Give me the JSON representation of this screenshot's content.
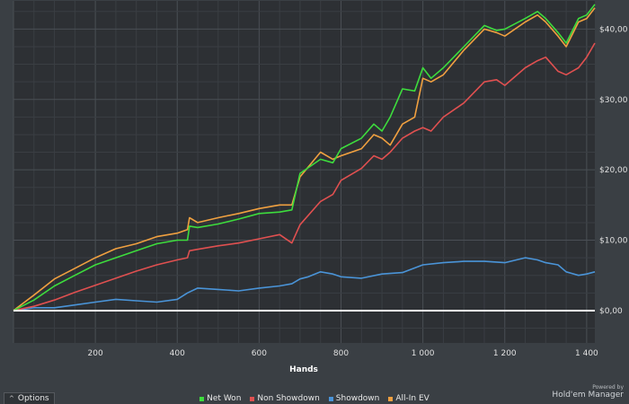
{
  "chart_data": {
    "type": "line",
    "xlabel": "Hands",
    "ylabel": "",
    "xlim": [
      0,
      1420
    ],
    "ylim": [
      -4.6,
      44
    ],
    "x_ticks": [
      200,
      400,
      600,
      800,
      1000,
      1200,
      1400
    ],
    "x_tick_labels": [
      "200",
      "400",
      "600",
      "800",
      "1 000",
      "1 200",
      "1 400"
    ],
    "y_ticks": [
      0,
      10,
      20,
      30,
      40
    ],
    "y_tick_labels": [
      "$0,00",
      "$10,00",
      "$20,00",
      "$30,00",
      "$40,00"
    ],
    "grid": true,
    "legend_position": "bottom-center",
    "series": [
      {
        "name": "Net Won",
        "color": "#3ddc3d",
        "x": [
          0,
          50,
          100,
          150,
          200,
          250,
          300,
          350,
          400,
          425,
          430,
          450,
          500,
          550,
          600,
          650,
          680,
          700,
          750,
          780,
          800,
          850,
          880,
          900,
          920,
          950,
          980,
          1000,
          1020,
          1050,
          1100,
          1150,
          1180,
          1200,
          1250,
          1280,
          1300,
          1330,
          1350,
          1380,
          1400,
          1420
        ],
        "values": [
          0,
          1.5,
          3.5,
          5,
          6.5,
          7.5,
          8.5,
          9.5,
          10,
          10,
          12,
          11.8,
          12.3,
          13,
          13.8,
          14,
          14.3,
          19.5,
          21.5,
          21,
          23,
          24.5,
          26.5,
          25.5,
          27.5,
          31.5,
          31.2,
          34.5,
          33,
          34.5,
          37.5,
          40.5,
          39.8,
          40,
          41.5,
          42.5,
          41.5,
          39.5,
          38,
          41.5,
          42,
          43.5
        ]
      },
      {
        "name": "Non Showdown",
        "color": "#e05050",
        "x": [
          0,
          50,
          100,
          150,
          200,
          250,
          300,
          350,
          400,
          425,
          430,
          450,
          500,
          550,
          600,
          650,
          680,
          700,
          750,
          780,
          800,
          850,
          880,
          900,
          920,
          950,
          980,
          1000,
          1020,
          1050,
          1100,
          1150,
          1180,
          1200,
          1250,
          1280,
          1300,
          1330,
          1350,
          1380,
          1400,
          1420
        ],
        "values": [
          0,
          0.6,
          1.5,
          2.6,
          3.6,
          4.6,
          5.6,
          6.5,
          7.2,
          7.5,
          8.5,
          8.7,
          9.2,
          9.6,
          10.2,
          10.8,
          9.6,
          12.2,
          15.5,
          16.5,
          18.5,
          20.2,
          22,
          21.5,
          22.5,
          24.5,
          25.5,
          26,
          25.5,
          27.5,
          29.5,
          32.5,
          32.8,
          32,
          34.5,
          35.5,
          36,
          34,
          33.5,
          34.5,
          36,
          38
        ]
      },
      {
        "name": "Showdown",
        "color": "#4a94d8",
        "x": [
          0,
          50,
          100,
          150,
          200,
          250,
          300,
          350,
          400,
          425,
          450,
          500,
          550,
          600,
          650,
          680,
          700,
          720,
          750,
          780,
          800,
          850,
          900,
          950,
          1000,
          1050,
          1100,
          1150,
          1200,
          1250,
          1280,
          1300,
          1330,
          1350,
          1380,
          1400,
          1420
        ],
        "values": [
          0,
          0.4,
          0.4,
          0.8,
          1.2,
          1.6,
          1.4,
          1.2,
          1.6,
          2.5,
          3.2,
          3,
          2.8,
          3.2,
          3.5,
          3.8,
          4.5,
          4.8,
          5.5,
          5.2,
          4.8,
          4.6,
          5.2,
          5.4,
          6.5,
          6.8,
          7,
          7,
          6.8,
          7.5,
          7.2,
          6.8,
          6.5,
          5.5,
          5,
          5.2,
          5.5
        ]
      },
      {
        "name": "All-In EV",
        "color": "#f0a040",
        "x": [
          0,
          50,
          100,
          150,
          200,
          250,
          300,
          350,
          400,
          425,
          430,
          450,
          500,
          550,
          600,
          650,
          680,
          700,
          750,
          780,
          800,
          850,
          880,
          900,
          920,
          950,
          980,
          1000,
          1020,
          1050,
          1100,
          1150,
          1180,
          1200,
          1250,
          1280,
          1300,
          1330,
          1350,
          1380,
          1400,
          1420
        ],
        "values": [
          0,
          2.2,
          4.5,
          6,
          7.5,
          8.8,
          9.5,
          10.5,
          11,
          11.5,
          13.2,
          12.5,
          13.2,
          13.8,
          14.5,
          15,
          15,
          19,
          22.5,
          21.5,
          22,
          23,
          25,
          24.5,
          23.5,
          26.5,
          27.5,
          33,
          32.5,
          33.5,
          37,
          40,
          39.5,
          39,
          41,
          42,
          41,
          39,
          37.5,
          41,
          41.5,
          43
        ]
      }
    ]
  },
  "options": {
    "label": "Options",
    "chevron": "^"
  },
  "branding": {
    "line1": "Powered by",
    "line2": "Hold'em Manager"
  }
}
